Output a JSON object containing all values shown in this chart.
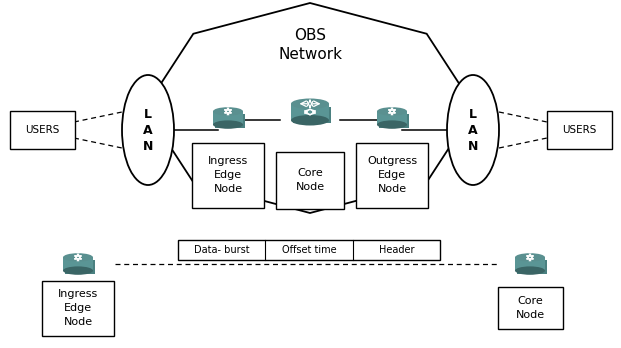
{
  "bg_color": "#ffffff",
  "line_color": "#000000",
  "router_top": "#5a9090",
  "router_body": "#5a9595",
  "router_dark": "#3a6565",
  "router_side": "#4a8080",
  "obs_text": "OBS\nNetwork",
  "lan_text": "L\nA\nN",
  "users_text": "USERS",
  "ingress_label": "Ingress\nEdge\nNode",
  "core_label": "Core\nNode",
  "outgress_label": "Outgress\nEdge\nNode",
  "burst_label": "Data- burst",
  "offset_label": "Offset time",
  "header_label": "Header",
  "bottom_ingress_label": "Ingress\nEdge\nNode",
  "bottom_core_label": "Core\nNode"
}
